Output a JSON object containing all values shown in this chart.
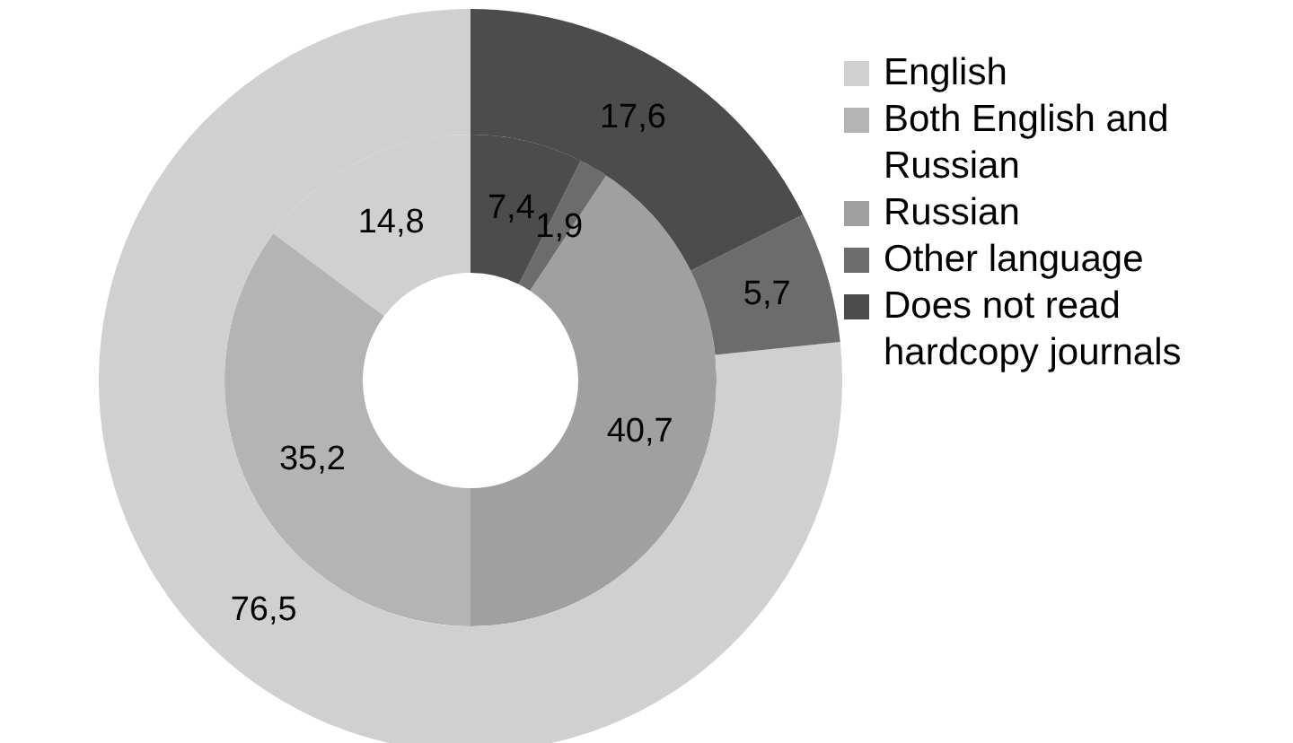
{
  "chart_data": {
    "type": "donut",
    "categories": [
      "English",
      "Both English and Russian",
      "Russian",
      "Other language",
      "Does not read hardcopy journals"
    ],
    "colors": [
      "#d0d0d0",
      "#b4b4b4",
      "#a0a0a0",
      "#6c6c6c",
      "#4c4c4c"
    ],
    "series": [
      {
        "values": [
          14.8,
          35.2,
          40.7,
          1.9,
          7.4
        ],
        "value_labels": [
          "14,8",
          "35,2",
          "40,7",
          "1,9",
          "7,4"
        ]
      },
      {
        "values": [
          76.5,
          null,
          null,
          5.7,
          17.6
        ],
        "value_labels": [
          "76,5",
          null,
          null,
          "5,7",
          "17,6"
        ]
      }
    ],
    "legend": "right"
  }
}
